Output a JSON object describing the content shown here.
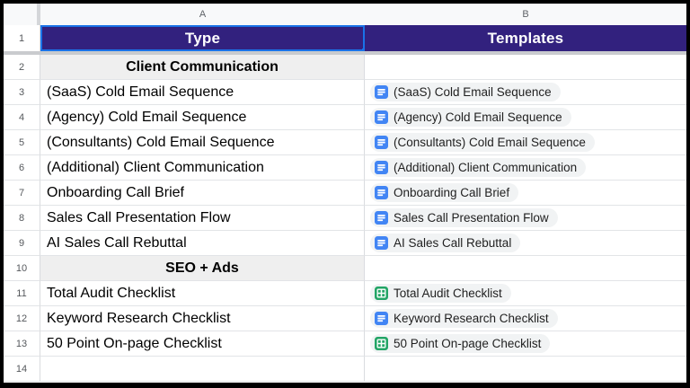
{
  "colors": {
    "header_bg": "#32217e",
    "selection_blue": "#1a73e8",
    "section_bg": "#efefef",
    "chip_bg": "#f1f3f4",
    "docs_icon_blue": "#4285f4",
    "sheets_icon_green": "#23a566"
  },
  "columns": [
    {
      "letter": "A"
    },
    {
      "letter": "B"
    }
  ],
  "header_row": {
    "num": "1",
    "type_label": "Type",
    "templates_label": "Templates"
  },
  "rows": [
    {
      "n": "2",
      "a": "Client Communication",
      "type": "section"
    },
    {
      "n": "3",
      "a": "(SaaS) Cold Email Sequence",
      "type": "item",
      "icon": "document"
    },
    {
      "n": "4",
      "a": "(Agency) Cold Email Sequence",
      "type": "item",
      "icon": "document"
    },
    {
      "n": "5",
      "a": "(Consultants) Cold Email Sequence",
      "type": "item",
      "icon": "document"
    },
    {
      "n": "6",
      "a": "(Additional) Client Communication",
      "type": "item",
      "icon": "document"
    },
    {
      "n": "7",
      "a": "Onboarding Call Brief",
      "type": "item",
      "icon": "document"
    },
    {
      "n": "8",
      "a": "Sales Call Presentation Flow",
      "type": "item",
      "icon": "document"
    },
    {
      "n": "9",
      "a": "AI Sales Call Rebuttal",
      "type": "item",
      "icon": "document"
    },
    {
      "n": "10",
      "a": "SEO + Ads",
      "type": "section"
    },
    {
      "n": "11",
      "a": "Total Audit Checklist",
      "type": "item",
      "icon": "spreadsheet"
    },
    {
      "n": "12",
      "a": "Keyword Research Checklist",
      "type": "item",
      "icon": "document"
    },
    {
      "n": "13",
      "a": "50 Point On-page Checklist",
      "type": "item",
      "icon": "spreadsheet"
    },
    {
      "n": "14",
      "a": "",
      "type": "empty"
    }
  ]
}
